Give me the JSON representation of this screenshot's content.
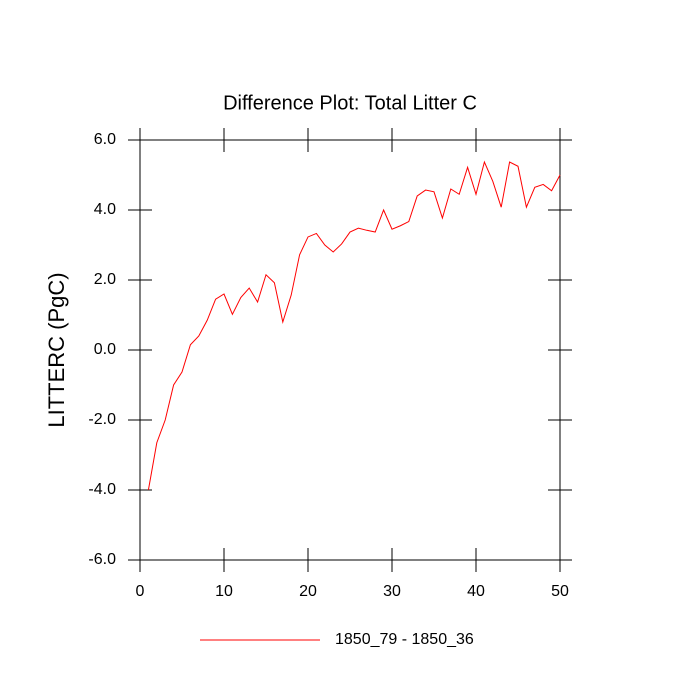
{
  "chart_data": {
    "type": "line",
    "title": "Difference Plot: Total Litter C",
    "y_label": "LITTERC  (PgC)",
    "x": [
      1,
      2,
      3,
      4,
      5,
      6,
      7,
      8,
      9,
      10,
      11,
      12,
      13,
      14,
      15,
      16,
      17,
      18,
      19,
      20,
      21,
      22,
      23,
      24,
      25,
      26,
      27,
      28,
      29,
      30,
      31,
      32,
      33,
      34,
      35,
      36,
      37,
      38,
      39,
      40,
      41,
      42,
      43,
      44,
      45,
      46,
      47,
      48,
      49,
      50
    ],
    "series": [
      {
        "name": "1850_79 - 1850_36",
        "color": "#ff0000",
        "values": [
          -4.0,
          -2.65,
          -2.0,
          -1.0,
          -0.63,
          0.15,
          0.4,
          0.85,
          1.45,
          1.6,
          1.02,
          1.5,
          1.77,
          1.37,
          2.15,
          1.92,
          0.8,
          1.57,
          2.72,
          3.23,
          3.33,
          3.0,
          2.8,
          3.03,
          3.37,
          3.48,
          3.42,
          3.37,
          4.0,
          3.45,
          3.55,
          3.67,
          4.4,
          4.57,
          4.52,
          3.77,
          4.6,
          4.45,
          5.22,
          4.45,
          5.37,
          4.82,
          4.08,
          5.37,
          5.25,
          4.08,
          4.65,
          4.73,
          4.55,
          5.0
        ]
      }
    ],
    "xlim": [
      0,
      50
    ],
    "xticks": [
      0,
      10,
      20,
      30,
      40,
      50
    ],
    "ylim": [
      -6,
      6
    ],
    "yticks": [
      {
        "value": -6,
        "label": "-6.0"
      },
      {
        "value": -4,
        "label": "-4.0"
      },
      {
        "value": -2,
        "label": "-2.0"
      },
      {
        "value": 0,
        "label": "0.0"
      },
      {
        "value": 2,
        "label": "2.0"
      },
      {
        "value": 4,
        "label": "4.0"
      },
      {
        "value": 6,
        "label": "6.0"
      }
    ],
    "legend": "bottom"
  }
}
